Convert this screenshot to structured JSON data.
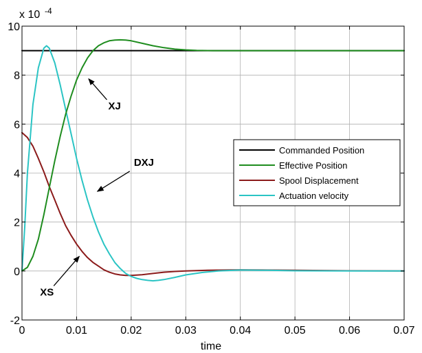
{
  "chart_data": {
    "type": "line",
    "title": "",
    "xlabel": "time",
    "ylabel": "",
    "exponent_label": "x 10",
    "exponent_power": "-4",
    "xlim": [
      0,
      0.07
    ],
    "ylim": [
      -2,
      10
    ],
    "x_ticks": [
      0,
      0.01,
      0.02,
      0.03,
      0.04,
      0.05,
      0.06,
      0.07
    ],
    "x_tick_labels": [
      "0",
      "0.01",
      "0.02",
      "0.03",
      "0.04",
      "0.05",
      "0.06",
      "0.07"
    ],
    "y_ticks": [
      -2,
      0,
      2,
      4,
      6,
      8,
      10
    ],
    "y_tick_labels": [
      "-2",
      "0",
      "2",
      "4",
      "6",
      "8",
      "10"
    ],
    "grid": true,
    "legend_position": "right",
    "series": [
      {
        "name": "Commanded Position",
        "color": "#000000",
        "x": [
          0,
          0.07
        ],
        "y": [
          9.0,
          9.0
        ]
      },
      {
        "name": "Effective Position",
        "color": "#1e8c1e",
        "x": [
          0,
          0.001,
          0.002,
          0.003,
          0.004,
          0.005,
          0.006,
          0.007,
          0.008,
          0.009,
          0.01,
          0.011,
          0.012,
          0.013,
          0.014,
          0.015,
          0.016,
          0.017,
          0.018,
          0.019,
          0.02,
          0.022,
          0.024,
          0.026,
          0.028,
          0.03,
          0.032,
          0.035,
          0.04,
          0.05,
          0.06,
          0.07
        ],
        "y": [
          0,
          0.15,
          0.6,
          1.3,
          2.3,
          3.4,
          4.5,
          5.5,
          6.4,
          7.15,
          7.8,
          8.3,
          8.7,
          9.0,
          9.2,
          9.32,
          9.4,
          9.43,
          9.44,
          9.43,
          9.4,
          9.3,
          9.2,
          9.12,
          9.06,
          9.03,
          9.01,
          9.0,
          9.0,
          9.0,
          9.0,
          9.0
        ]
      },
      {
        "name": "Spool Displacement",
        "color": "#8b1a1a",
        "x": [
          0,
          0.001,
          0.002,
          0.003,
          0.004,
          0.005,
          0.006,
          0.007,
          0.008,
          0.009,
          0.01,
          0.011,
          0.012,
          0.013,
          0.014,
          0.015,
          0.016,
          0.017,
          0.018,
          0.019,
          0.02,
          0.022,
          0.024,
          0.026,
          0.028,
          0.03,
          0.034,
          0.04,
          0.05,
          0.06,
          0.07
        ],
        "y": [
          5.65,
          5.45,
          5.1,
          4.6,
          4.05,
          3.45,
          2.9,
          2.35,
          1.85,
          1.45,
          1.1,
          0.8,
          0.55,
          0.35,
          0.2,
          0.05,
          -0.05,
          -0.12,
          -0.16,
          -0.18,
          -0.18,
          -0.15,
          -0.1,
          -0.05,
          -0.02,
          0.0,
          0.03,
          0.05,
          0.03,
          0.01,
          0.0
        ]
      },
      {
        "name": "Actuation velocity",
        "color": "#2ac4c4",
        "x": [
          0,
          0.0005,
          0.001,
          0.002,
          0.003,
          0.004,
          0.0045,
          0.005,
          0.006,
          0.007,
          0.008,
          0.009,
          0.01,
          0.011,
          0.012,
          0.013,
          0.014,
          0.015,
          0.016,
          0.017,
          0.018,
          0.019,
          0.02,
          0.021,
          0.022,
          0.023,
          0.024,
          0.025,
          0.026,
          0.028,
          0.03,
          0.033,
          0.036,
          0.04,
          0.045,
          0.05,
          0.06,
          0.07
        ],
        "y": [
          0,
          1.8,
          4.0,
          6.8,
          8.3,
          9.1,
          9.2,
          9.1,
          8.5,
          7.6,
          6.6,
          5.6,
          4.6,
          3.7,
          2.9,
          2.2,
          1.6,
          1.1,
          0.7,
          0.35,
          0.1,
          -0.1,
          -0.22,
          -0.3,
          -0.35,
          -0.38,
          -0.4,
          -0.38,
          -0.35,
          -0.26,
          -0.16,
          -0.06,
          0.0,
          0.04,
          0.03,
          0.01,
          0.0,
          0.0
        ]
      }
    ],
    "annotations": [
      {
        "text": "XJ",
        "x": 0.0158,
        "y": 6.6,
        "arrow_to_x": 0.0122,
        "arrow_to_y": 7.85
      },
      {
        "text": "DXJ",
        "x": 0.0205,
        "y": 4.3,
        "arrow_to_x": 0.0138,
        "arrow_to_y": 3.25
      },
      {
        "text": "XS",
        "x": 0.0033,
        "y": -1.0,
        "arrow_to_x": 0.0105,
        "arrow_to_y": 0.6
      }
    ]
  }
}
